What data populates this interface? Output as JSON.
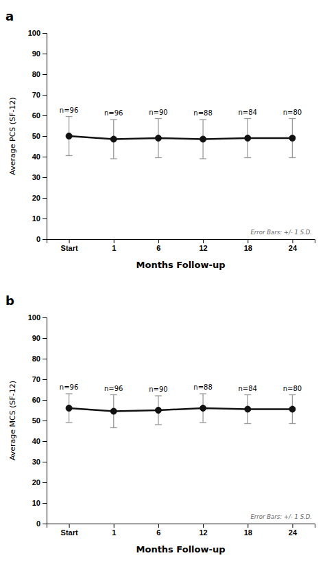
{
  "chart_data": [
    {
      "type": "line",
      "title": "a",
      "categories": [
        "Start",
        "1",
        "6",
        "12",
        "18",
        "24"
      ],
      "values": [
        50.0,
        48.5,
        49.0,
        48.5,
        49.0,
        49.0
      ],
      "errors": [
        9.5,
        9.5,
        9.5,
        9.5,
        9.5,
        9.5
      ],
      "annotations": [
        "n=96",
        "n=96",
        "n=90",
        "n=88",
        "n=84",
        "n=80"
      ],
      "note": "Error Bars: +/- 1 S.D.",
      "xlabel": "Months Follow-up",
      "ylabel": "Average PCS (SF-12)",
      "ylim": [
        0,
        100
      ],
      "yticks": [
        0,
        10,
        20,
        30,
        40,
        50,
        60,
        70,
        80,
        90,
        100
      ],
      "color": "#111111",
      "marker": "circle",
      "grid": false
    },
    {
      "type": "line",
      "title": "b",
      "categories": [
        "Start",
        "1",
        "6",
        "12",
        "18",
        "24"
      ],
      "values": [
        56.0,
        54.5,
        55.0,
        56.0,
        55.5,
        55.5
      ],
      "errors": [
        7.0,
        8.0,
        7.0,
        7.0,
        7.0,
        7.0
      ],
      "annotations": [
        "n=96",
        "n=96",
        "n=90",
        "n=88",
        "n=84",
        "n=80"
      ],
      "note": "Error Bars: +/- 1 S.D.",
      "xlabel": "Months Follow-up",
      "ylabel": "Average MCS (SF-12)",
      "ylim": [
        0,
        100
      ],
      "yticks": [
        0,
        10,
        20,
        30,
        40,
        50,
        60,
        70,
        80,
        90,
        100
      ],
      "color": "#111111",
      "marker": "circle",
      "grid": false
    }
  ]
}
